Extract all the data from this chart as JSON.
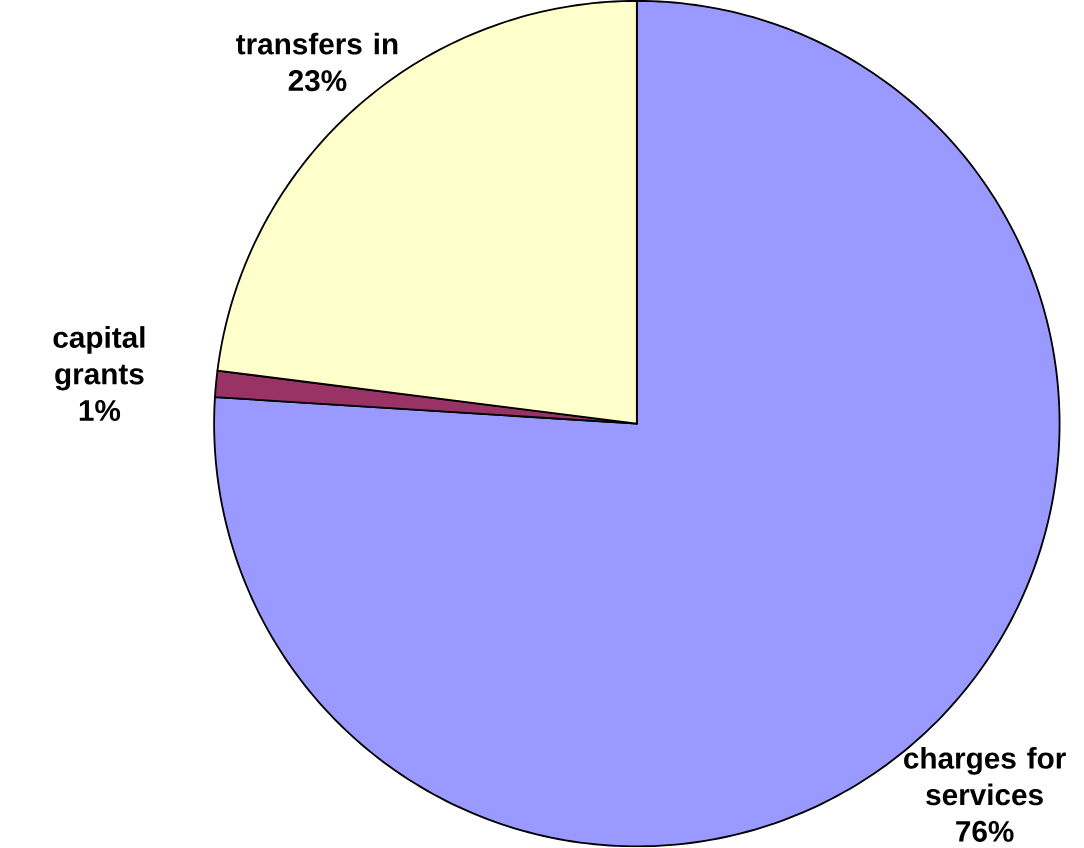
{
  "chart_data": {
    "type": "pie",
    "categories": [
      "charges for services",
      "capital grants",
      "transfers in"
    ],
    "values": [
      76,
      1,
      23
    ],
    "colors": [
      "#9999ff",
      "#993366",
      "#ffffcc"
    ],
    "value_labels": [
      "76%",
      "1%",
      "23%"
    ]
  }
}
